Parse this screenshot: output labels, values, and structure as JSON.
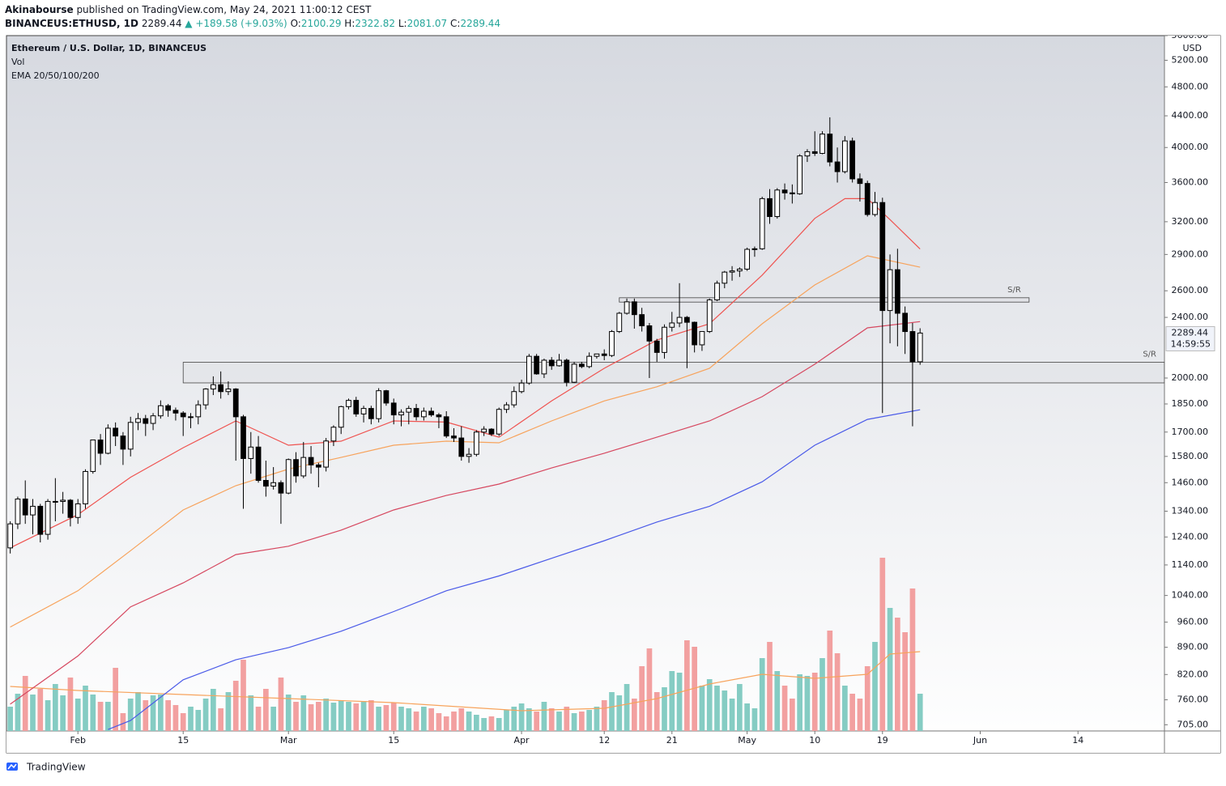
{
  "header": {
    "author": "Akinabourse",
    "published": "published on TradingView.com, May 24, 2021 11:00:12 CEST",
    "symbol": "BINANCEUS:ETHUSD, 1D",
    "last": "2289.44",
    "change": "▲ +189.58 (+9.03%)",
    "ohlc": [
      {
        "label": "O:",
        "value": "2100.29"
      },
      {
        "label": "H:",
        "value": "2322.82"
      },
      {
        "label": "L:",
        "value": "2081.07"
      },
      {
        "label": "C:",
        "value": "2289.44"
      }
    ]
  },
  "footer": {
    "brand": "TradingView"
  },
  "chart_data": {
    "type": "candlestick",
    "legend": [
      "Ethereum / U.S. Dollar, 1D, BINANCEUS",
      "Vol",
      "EMA 20/50/100/200"
    ],
    "y_unit": "USD",
    "countdown": "14:59:55",
    "log_scale": true,
    "grid": false,
    "ylim": [
      692,
      5600
    ],
    "yticks": [
      {
        "value": 5600,
        "label": "5600.00"
      },
      {
        "value": 5200,
        "label": "5200.00"
      },
      {
        "value": 4800,
        "label": "4800.00"
      },
      {
        "value": 4400,
        "label": "4400.00"
      },
      {
        "value": 4000,
        "label": "4000.00"
      },
      {
        "value": 3600,
        "label": "3600.00"
      },
      {
        "value": 3200,
        "label": "3200.00"
      },
      {
        "value": 2900,
        "label": "2900.00"
      },
      {
        "value": 2600,
        "label": "2600.00"
      },
      {
        "value": 2400,
        "label": "2400.00"
      },
      {
        "value": 2000,
        "label": "2000.00"
      },
      {
        "value": 1850,
        "label": "1850.00"
      },
      {
        "value": 1700,
        "label": "1700.00"
      },
      {
        "value": 1580,
        "label": "1580.00"
      },
      {
        "value": 1460,
        "label": "1460.00"
      },
      {
        "value": 1340,
        "label": "1340.00"
      },
      {
        "value": 1240,
        "label": "1240.00"
      },
      {
        "value": 1140,
        "label": "1140.00"
      },
      {
        "value": 1040,
        "label": "1040.00"
      },
      {
        "value": 960,
        "label": "960.00"
      },
      {
        "value": 890,
        "label": "890.00"
      },
      {
        "value": 820,
        "label": "820.00"
      },
      {
        "value": 760,
        "label": "760.00"
      },
      {
        "value": 705,
        "label": "705.00"
      }
    ],
    "xlim": [
      "01-23",
      "06-25"
    ],
    "xticks": [
      {
        "value": "02-01",
        "label": "Feb"
      },
      {
        "value": "02-15",
        "label": "15"
      },
      {
        "value": "03-01",
        "label": "Mar"
      },
      {
        "value": "03-15",
        "label": "15"
      },
      {
        "value": "04-01",
        "label": "Apr"
      },
      {
        "value": "04-12",
        "label": "12"
      },
      {
        "value": "04-21",
        "label": "21"
      },
      {
        "value": "05-01",
        "label": "May"
      },
      {
        "value": "05-10",
        "label": "10"
      },
      {
        "value": "05-19",
        "label": "19"
      },
      {
        "value": "06-01",
        "label": "Jun"
      },
      {
        "value": "06-14",
        "label": "14"
      }
    ],
    "x": [
      "01-23",
      "01-24",
      "01-25",
      "01-26",
      "01-27",
      "01-28",
      "01-29",
      "01-30",
      "01-31",
      "02-01",
      "02-02",
      "02-03",
      "02-04",
      "02-05",
      "02-06",
      "02-07",
      "02-08",
      "02-09",
      "02-10",
      "02-11",
      "02-12",
      "02-13",
      "02-14",
      "02-15",
      "02-16",
      "02-17",
      "02-18",
      "02-19",
      "02-20",
      "02-21",
      "02-22",
      "02-23",
      "02-24",
      "02-25",
      "02-26",
      "02-27",
      "02-28",
      "03-01",
      "03-02",
      "03-03",
      "03-04",
      "03-05",
      "03-06",
      "03-07",
      "03-08",
      "03-09",
      "03-10",
      "03-11",
      "03-12",
      "03-13",
      "03-14",
      "03-15",
      "03-16",
      "03-17",
      "03-18",
      "03-19",
      "03-20",
      "03-21",
      "03-22",
      "03-23",
      "03-24",
      "03-25",
      "03-26",
      "03-27",
      "03-28",
      "03-29",
      "03-30",
      "03-31",
      "04-01",
      "04-02",
      "04-03",
      "04-04",
      "04-05",
      "04-06",
      "04-07",
      "04-08",
      "04-09",
      "04-10",
      "04-11",
      "04-12",
      "04-13",
      "04-14",
      "04-15",
      "04-16",
      "04-17",
      "04-18",
      "04-19",
      "04-20",
      "04-21",
      "04-22",
      "04-23",
      "04-24",
      "04-25",
      "04-26",
      "04-27",
      "04-28",
      "04-29",
      "04-30",
      "05-01",
      "05-02",
      "05-03",
      "05-04",
      "05-05",
      "05-06",
      "05-07",
      "05-08",
      "05-09",
      "05-10",
      "05-11",
      "05-12",
      "05-13",
      "05-14",
      "05-15",
      "05-16",
      "05-17",
      "05-18",
      "05-19",
      "05-20",
      "05-21",
      "05-22",
      "05-23",
      "05-24"
    ],
    "ohlc": [
      [
        1200,
        1300,
        1180,
        1290
      ],
      [
        1290,
        1400,
        1270,
        1390
      ],
      [
        1390,
        1470,
        1290,
        1325
      ],
      [
        1325,
        1390,
        1250,
        1360
      ],
      [
        1360,
        1370,
        1220,
        1250
      ],
      [
        1250,
        1390,
        1230,
        1380
      ],
      [
        1380,
        1480,
        1300,
        1380
      ],
      [
        1380,
        1420,
        1330,
        1385
      ],
      [
        1385,
        1390,
        1280,
        1315
      ],
      [
        1315,
        1390,
        1290,
        1370
      ],
      [
        1370,
        1520,
        1350,
        1510
      ],
      [
        1510,
        1660,
        1500,
        1660
      ],
      [
        1660,
        1690,
        1540,
        1595
      ],
      [
        1595,
        1740,
        1590,
        1720
      ],
      [
        1720,
        1750,
        1630,
        1680
      ],
      [
        1680,
        1700,
        1540,
        1615
      ],
      [
        1615,
        1780,
        1580,
        1750
      ],
      [
        1750,
        1800,
        1710,
        1770
      ],
      [
        1770,
        1790,
        1680,
        1745
      ],
      [
        1745,
        1800,
        1710,
        1785
      ],
      [
        1785,
        1870,
        1770,
        1840
      ],
      [
        1840,
        1850,
        1780,
        1815
      ],
      [
        1815,
        1830,
        1760,
        1800
      ],
      [
        1800,
        1810,
        1680,
        1780
      ],
      [
        1780,
        1800,
        1720,
        1780
      ],
      [
        1780,
        1870,
        1740,
        1845
      ],
      [
        1845,
        1940,
        1820,
        1935
      ],
      [
        1935,
        2010,
        1900,
        1960
      ],
      [
        1960,
        2040,
        1880,
        1920
      ],
      [
        1920,
        1980,
        1900,
        1935
      ],
      [
        1935,
        1940,
        1560,
        1780
      ],
      [
        1780,
        1790,
        1350,
        1570
      ],
      [
        1570,
        1700,
        1500,
        1625
      ],
      [
        1625,
        1680,
        1460,
        1470
      ],
      [
        1470,
        1560,
        1400,
        1445
      ],
      [
        1445,
        1530,
        1430,
        1460
      ],
      [
        1460,
        1470,
        1290,
        1415
      ],
      [
        1415,
        1570,
        1410,
        1565
      ],
      [
        1565,
        1600,
        1460,
        1490
      ],
      [
        1490,
        1650,
        1480,
        1575
      ],
      [
        1575,
        1630,
        1500,
        1540
      ],
      [
        1540,
        1550,
        1440,
        1530
      ],
      [
        1530,
        1670,
        1510,
        1655
      ],
      [
        1655,
        1735,
        1630,
        1725
      ],
      [
        1725,
        1840,
        1690,
        1835
      ],
      [
        1835,
        1880,
        1820,
        1870
      ],
      [
        1870,
        1890,
        1780,
        1795
      ],
      [
        1795,
        1840,
        1750,
        1825
      ],
      [
        1825,
        1840,
        1740,
        1770
      ],
      [
        1770,
        1940,
        1750,
        1925
      ],
      [
        1925,
        1930,
        1840,
        1855
      ],
      [
        1855,
        1880,
        1740,
        1790
      ],
      [
        1790,
        1820,
        1730,
        1805
      ],
      [
        1805,
        1840,
        1740,
        1825
      ],
      [
        1825,
        1850,
        1760,
        1780
      ],
      [
        1780,
        1830,
        1760,
        1810
      ],
      [
        1810,
        1830,
        1780,
        1790
      ],
      [
        1790,
        1800,
        1720,
        1780
      ],
      [
        1780,
        1810,
        1670,
        1680
      ],
      [
        1680,
        1720,
        1650,
        1670
      ],
      [
        1670,
        1730,
        1560,
        1580
      ],
      [
        1580,
        1620,
        1550,
        1590
      ],
      [
        1590,
        1710,
        1580,
        1700
      ],
      [
        1700,
        1730,
        1680,
        1715
      ],
      [
        1715,
        1720,
        1680,
        1690
      ],
      [
        1690,
        1830,
        1680,
        1820
      ],
      [
        1820,
        1860,
        1800,
        1845
      ],
      [
        1845,
        1950,
        1830,
        1920
      ],
      [
        1920,
        1990,
        1910,
        1970
      ],
      [
        1970,
        2150,
        1960,
        2135
      ],
      [
        2135,
        2150,
        2020,
        2025
      ],
      [
        2025,
        2120,
        2000,
        2110
      ],
      [
        2110,
        2130,
        2050,
        2075
      ],
      [
        2075,
        2150,
        2070,
        2110
      ],
      [
        2110,
        2120,
        1950,
        1975
      ],
      [
        1975,
        2100,
        1970,
        2085
      ],
      [
        2085,
        2100,
        2060,
        2070
      ],
      [
        2070,
        2160,
        2060,
        2135
      ],
      [
        2135,
        2150,
        2120,
        2150
      ],
      [
        2150,
        2180,
        2110,
        2140
      ],
      [
        2140,
        2310,
        2130,
        2300
      ],
      [
        2300,
        2440,
        2290,
        2430
      ],
      [
        2430,
        2540,
        2420,
        2515
      ],
      [
        2515,
        2540,
        2320,
        2420
      ],
      [
        2420,
        2470,
        2300,
        2340
      ],
      [
        2340,
        2360,
        2000,
        2235
      ],
      [
        2235,
        2250,
        2100,
        2160
      ],
      [
        2160,
        2350,
        2120,
        2330
      ],
      [
        2330,
        2440,
        2300,
        2360
      ],
      [
        2360,
        2660,
        2330,
        2400
      ],
      [
        2400,
        2410,
        2060,
        2365
      ],
      [
        2365,
        2370,
        2160,
        2210
      ],
      [
        2210,
        2300,
        2170,
        2300
      ],
      [
        2300,
        2540,
        2290,
        2530
      ],
      [
        2530,
        2680,
        2520,
        2660
      ],
      [
        2660,
        2760,
        2620,
        2750
      ],
      [
        2750,
        2800,
        2680,
        2760
      ],
      [
        2760,
        2790,
        2710,
        2775
      ],
      [
        2775,
        2960,
        2760,
        2945
      ],
      [
        2945,
        2970,
        2880,
        2950
      ],
      [
        2950,
        3450,
        2940,
        3430
      ],
      [
        3430,
        3530,
        3180,
        3250
      ],
      [
        3250,
        3540,
        3230,
        3520
      ],
      [
        3520,
        3590,
        3420,
        3490
      ],
      [
        3490,
        3580,
        3380,
        3480
      ],
      [
        3480,
        3920,
        3470,
        3900
      ],
      [
        3900,
        3980,
        3830,
        3950
      ],
      [
        3950,
        4200,
        3900,
        3930
      ],
      [
        3930,
        4200,
        3920,
        4165
      ],
      [
        4165,
        4380,
        3780,
        3830
      ],
      [
        3830,
        4000,
        3600,
        3720
      ],
      [
        3720,
        4140,
        3700,
        4080
      ],
      [
        4080,
        4120,
        3600,
        3640
      ],
      [
        3640,
        3700,
        3400,
        3590
      ],
      [
        3590,
        3620,
        3250,
        3270
      ],
      [
        3270,
        3500,
        3250,
        3390
      ],
      [
        3390,
        3440,
        1800,
        2450
      ],
      [
        2450,
        2900,
        2220,
        2770
      ],
      [
        2770,
        2950,
        2200,
        2430
      ],
      [
        2430,
        2480,
        2150,
        2300
      ],
      [
        2300,
        2360,
        1730,
        2100
      ],
      [
        2100.29,
        2322.82,
        2081.07,
        2289.44
      ]
    ],
    "vlim": [
      0,
      260
    ],
    "volume": [
      30,
      46,
      68,
      45,
      52,
      38,
      58,
      44,
      66,
      40,
      56,
      45,
      36,
      36,
      78,
      22,
      40,
      48,
      38,
      44,
      45,
      38,
      32,
      22,
      30,
      26,
      40,
      52,
      28,
      48,
      62,
      88,
      44,
      30,
      52,
      30,
      66,
      45,
      36,
      44,
      33,
      36,
      40,
      35,
      38,
      36,
      34,
      37,
      38,
      30,
      32,
      35,
      30,
      28,
      24,
      30,
      28,
      22,
      18,
      24,
      28,
      24,
      20,
      16,
      18,
      16,
      26,
      30,
      34,
      28,
      24,
      36,
      28,
      24,
      30,
      22,
      24,
      26,
      30,
      38,
      48,
      44,
      58,
      40,
      80,
      102,
      48,
      54,
      74,
      72,
      112,
      104,
      56,
      64,
      56,
      50,
      40,
      58,
      34,
      28,
      90,
      110,
      74,
      56,
      40,
      70,
      68,
      72,
      90,
      124,
      96,
      56,
      46,
      40,
      80,
      110,
      214,
      152,
      140,
      122,
      176,
      46
    ],
    "up_color": "#ffffff",
    "down_color": "#000000",
    "up_volume_color": "#85ccc3",
    "down_volume_color": "#f2a0a0",
    "volume_ma": {
      "color": "#f7a35c",
      "x": [
        "01-23",
        "02-01",
        "02-15",
        "03-01",
        "03-15",
        "04-01",
        "04-12",
        "04-19",
        "04-26",
        "05-03",
        "05-10",
        "05-17",
        "05-20",
        "05-24"
      ],
      "values": [
        55,
        50,
        45,
        40,
        35,
        25,
        28,
        40,
        58,
        70,
        65,
        70,
        95,
        98
      ]
    },
    "ema": [
      {
        "color": "#ef5350",
        "x": [
          "01-23",
          "02-01",
          "02-08",
          "02-15",
          "02-22",
          "03-01",
          "03-08",
          "03-15",
          "03-22",
          "03-29",
          "04-05",
          "04-12",
          "04-19",
          "04-26",
          "05-03",
          "05-10",
          "05-14",
          "05-17",
          "05-20",
          "05-24"
        ],
        "values": [
          1200,
          1326,
          1484,
          1622,
          1758,
          1634,
          1654,
          1758,
          1752,
          1674,
          1867,
          2059,
          2242,
          2354,
          2725,
          3232,
          3430,
          3430,
          3220,
          2948
        ]
      },
      {
        "color": "#f7a35c",
        "x": [
          "01-23",
          "02-01",
          "02-08",
          "02-15",
          "02-22",
          "03-01",
          "03-08",
          "03-15",
          "03-22",
          "03-29",
          "04-05",
          "04-12",
          "04-19",
          "04-26",
          "05-03",
          "05-10",
          "05-17",
          "05-24"
        ],
        "values": [
          946,
          1055,
          1190,
          1345,
          1447,
          1521,
          1575,
          1634,
          1654,
          1646,
          1758,
          1867,
          1948,
          2059,
          2354,
          2646,
          2888,
          2791
        ]
      },
      {
        "color": "#d6475f",
        "x": [
          "01-23",
          "02-01",
          "02-08",
          "02-15",
          "02-22",
          "03-01",
          "03-08",
          "03-15",
          "03-22",
          "03-29",
          "04-05",
          "04-12",
          "04-19",
          "04-26",
          "05-03",
          "05-10",
          "05-17",
          "05-24"
        ],
        "values": [
          750,
          867,
          1005,
          1080,
          1176,
          1206,
          1266,
          1345,
          1405,
          1454,
          1526,
          1595,
          1674,
          1758,
          1891,
          2085,
          2326,
          2370
        ]
      },
      {
        "color": "#4a5ae8",
        "x": [
          "02-05",
          "02-08",
          "02-15",
          "02-22",
          "03-01",
          "03-08",
          "03-15",
          "03-22",
          "03-29",
          "04-05",
          "04-12",
          "04-19",
          "04-26",
          "05-03",
          "05-10",
          "05-17",
          "05-24"
        ],
        "values": [
          695,
          714,
          807,
          857,
          889,
          934,
          991,
          1055,
          1103,
          1163,
          1226,
          1297,
          1360,
          1464,
          1634,
          1766,
          1818
        ]
      }
    ],
    "zones": [
      {
        "label": "S/R",
        "low": 1971,
        "high": 2097,
        "from": "02-15",
        "to": "06-25"
      },
      {
        "label": "S/R",
        "low": 2513,
        "high": 2546,
        "from": "04-14",
        "to": "06-07"
      }
    ]
  }
}
